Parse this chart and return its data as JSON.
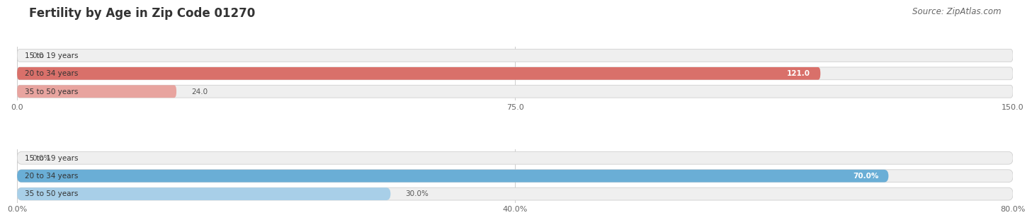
{
  "title": "Fertility by Age in Zip Code 01270",
  "source": "Source: ZipAtlas.com",
  "top_chart": {
    "categories": [
      "15 to 19 years",
      "20 to 34 years",
      "35 to 50 years"
    ],
    "values": [
      0.0,
      121.0,
      24.0
    ],
    "xlim": [
      0,
      150
    ],
    "xticks": [
      0.0,
      75.0,
      150.0
    ],
    "bar_color_strong": "#d9706a",
    "bar_color_weak": "#e8a49f",
    "bar_bg_color": "#efefef"
  },
  "bottom_chart": {
    "categories": [
      "15 to 19 years",
      "20 to 34 years",
      "35 to 50 years"
    ],
    "values": [
      0.0,
      70.0,
      30.0
    ],
    "xlim": [
      0,
      80
    ],
    "xticks": [
      0.0,
      40.0,
      80.0
    ],
    "bar_color_strong": "#6aaed6",
    "bar_color_weak": "#a8cfe8",
    "bar_bg_color": "#efefef"
  },
  "title_fontsize": 12,
  "source_fontsize": 8.5,
  "label_fontsize": 7.5,
  "tick_fontsize": 8,
  "bar_height": 0.7,
  "background_color": "#ffffff"
}
